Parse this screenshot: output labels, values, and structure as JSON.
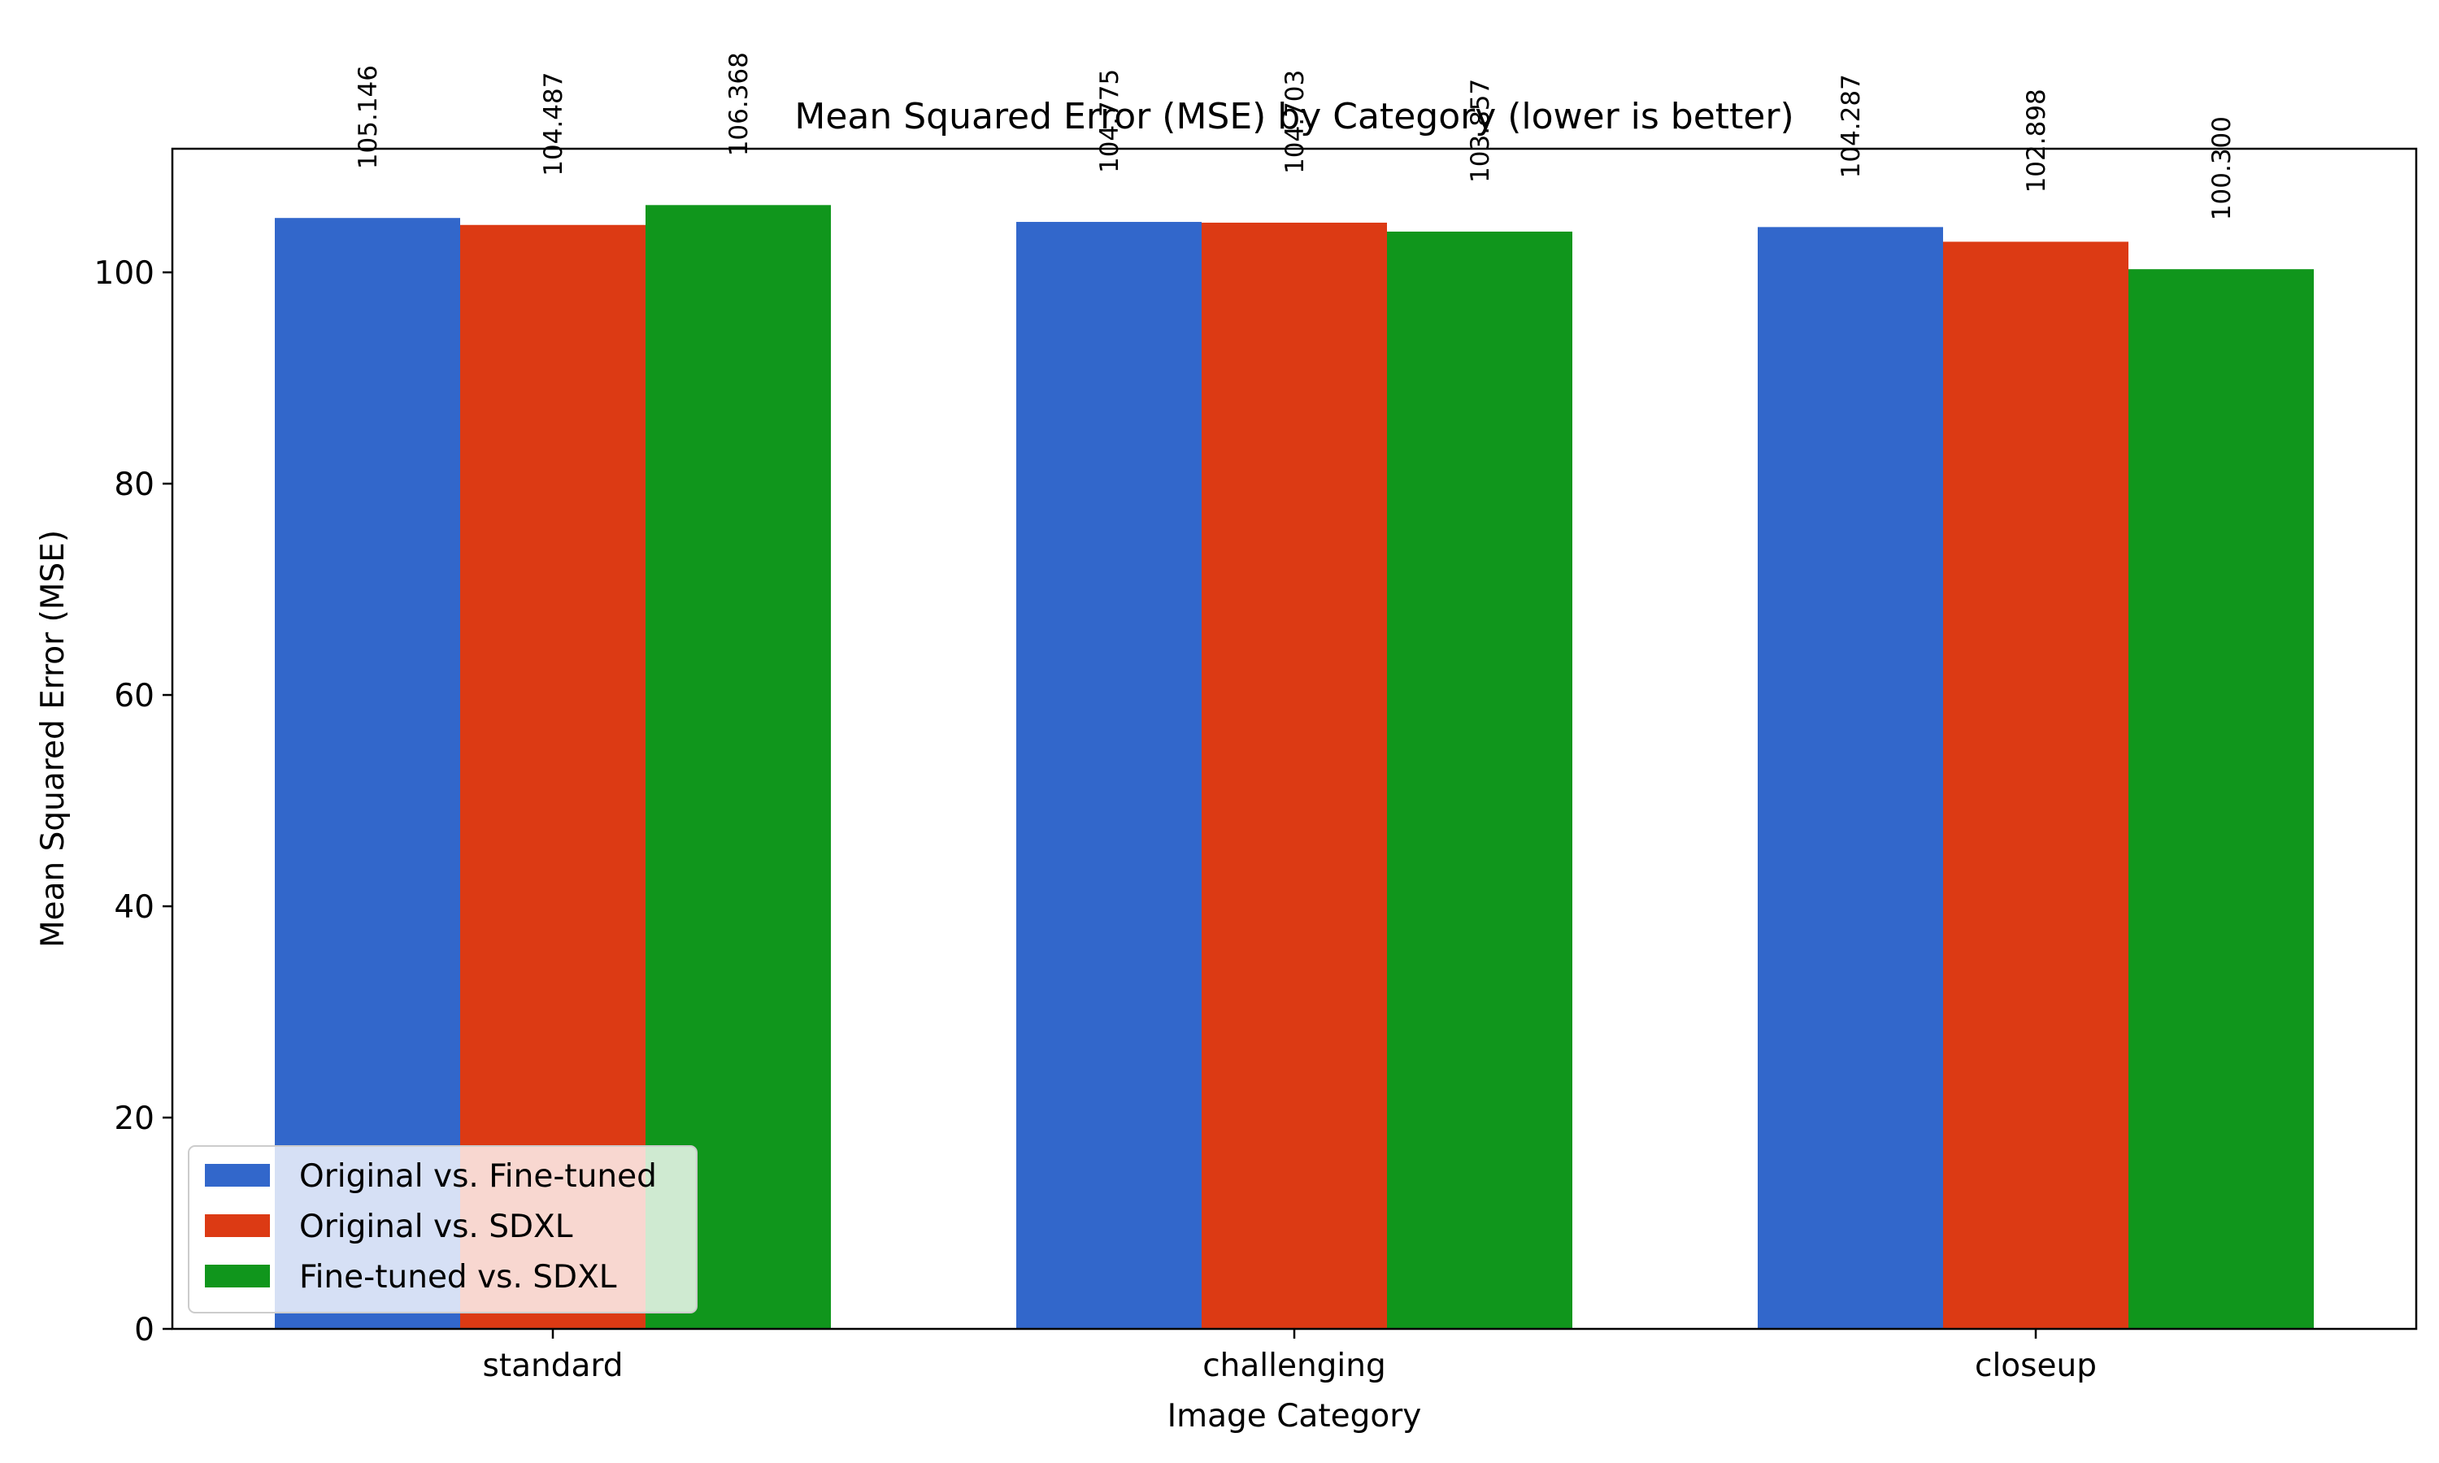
{
  "chart_data": {
    "type": "bar",
    "title": "Mean Squared Error (MSE) by Category (lower is better)",
    "xlabel": "Image Category",
    "ylabel": "Mean Squared Error (MSE)",
    "categories": [
      "standard",
      "challenging",
      "closeup"
    ],
    "series": [
      {
        "name": "Original vs. Fine-tuned",
        "color": "#3267cb",
        "values": [
          105.146,
          104.775,
          104.287
        ],
        "labels": [
          "105.146",
          "104.775",
          "104.287"
        ]
      },
      {
        "name": "Original vs. SDXL",
        "color": "#dc3a14",
        "values": [
          104.487,
          104.703,
          102.898
        ],
        "labels": [
          "104.487",
          "104.703",
          "102.898"
        ]
      },
      {
        "name": "Fine-tuned vs. SDXL",
        "color": "#10961c",
        "values": [
          106.368,
          103.857,
          100.3
        ],
        "labels": [
          "106.368",
          "103.857",
          "100.300"
        ]
      }
    ],
    "ylim": [
      0,
      111.7
    ],
    "yticks": [
      0,
      20,
      40,
      60,
      80,
      100
    ],
    "grid": false,
    "legend_position": "lower-left"
  }
}
